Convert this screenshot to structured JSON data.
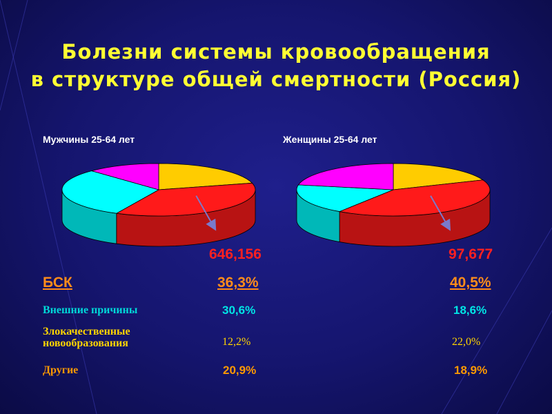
{
  "title_line1": "Болезни системы кровообращения",
  "title_line2": "в структуре общей смертности (Россия)",
  "chart_data": [
    {
      "type": "pie",
      "title": "Мужчины 25-64 лет",
      "total": "646,156",
      "slices": [
        {
          "label": "БСК",
          "value": 36.3,
          "display": "36,3%",
          "color": "#ff1a1a"
        },
        {
          "label": "Внешние причины",
          "value": 30.6,
          "display": "30,6%",
          "color": "#00ffff"
        },
        {
          "label": "Злокачественные новообразования",
          "value": 12.2,
          "display": "12,2%",
          "color": "#ff00ff"
        },
        {
          "label": "Другие",
          "value": 20.9,
          "display": "20,9%",
          "color": "#ffcc00"
        }
      ]
    },
    {
      "type": "pie",
      "title": "Женщины 25-64 лет",
      "total": "97,677",
      "slices": [
        {
          "label": "БСК",
          "value": 40.5,
          "display": "40,5%",
          "color": "#ff1a1a"
        },
        {
          "label": "Внешние причины",
          "value": 18.6,
          "display": "18,6%",
          "color": "#00ffff"
        },
        {
          "label": "Злокачественные новообразования",
          "value": 22.0,
          "display": "22,0%",
          "color": "#ff00ff"
        },
        {
          "label": "Другие",
          "value": 18.9,
          "display": "18,9%",
          "color": "#ffcc00"
        }
      ]
    }
  ],
  "rows": {
    "bsk": "БСК",
    "external": "Внешние причины",
    "oncology_line1": "Злокачественные",
    "oncology_line2": "новообразования",
    "other": "Другие"
  },
  "colors": {
    "background": "#15156e",
    "title": "#ffff33",
    "total": "#ff2020"
  }
}
